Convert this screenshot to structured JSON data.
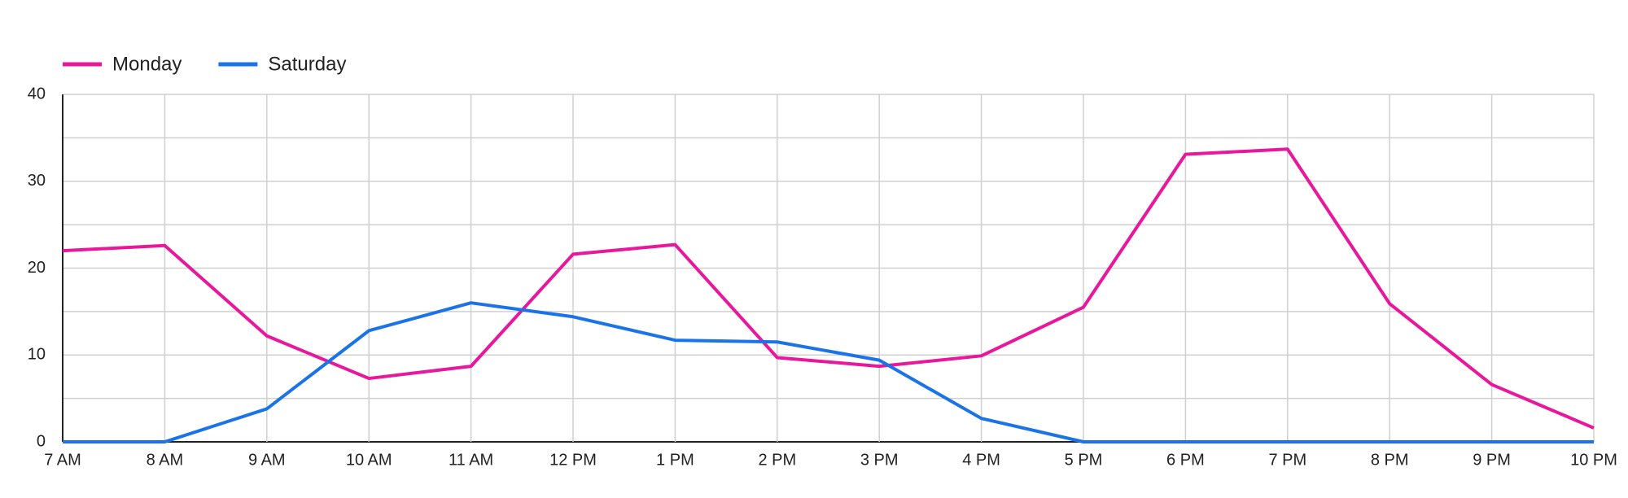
{
  "chart_data": {
    "type": "line",
    "categories": [
      "7 AM",
      "8 AM",
      "9 AM",
      "10 AM",
      "11 AM",
      "12 PM",
      "1 PM",
      "2 PM",
      "3 PM",
      "4 PM",
      "5 PM",
      "6 PM",
      "7 PM",
      "8 PM",
      "9 PM",
      "10 PM"
    ],
    "series": [
      {
        "name": "Monday",
        "color": "#e8179b",
        "values": [
          22.0,
          22.6,
          12.2,
          7.3,
          8.7,
          21.6,
          22.7,
          9.7,
          8.7,
          9.9,
          15.5,
          33.1,
          33.7,
          15.9,
          6.6,
          1.6
        ]
      },
      {
        "name": "Saturday",
        "color": "#1a73e8",
        "values": [
          0,
          0,
          3.8,
          12.8,
          16.0,
          14.4,
          11.7,
          11.5,
          9.4,
          2.7,
          0,
          0,
          0,
          0,
          0,
          0
        ]
      }
    ],
    "ylim": [
      0,
      40
    ],
    "yticks": [
      0,
      10,
      20,
      30,
      40
    ],
    "y_minor_gridlines": [
      5,
      15,
      25,
      35
    ],
    "grid": true,
    "legend": "top-left"
  }
}
